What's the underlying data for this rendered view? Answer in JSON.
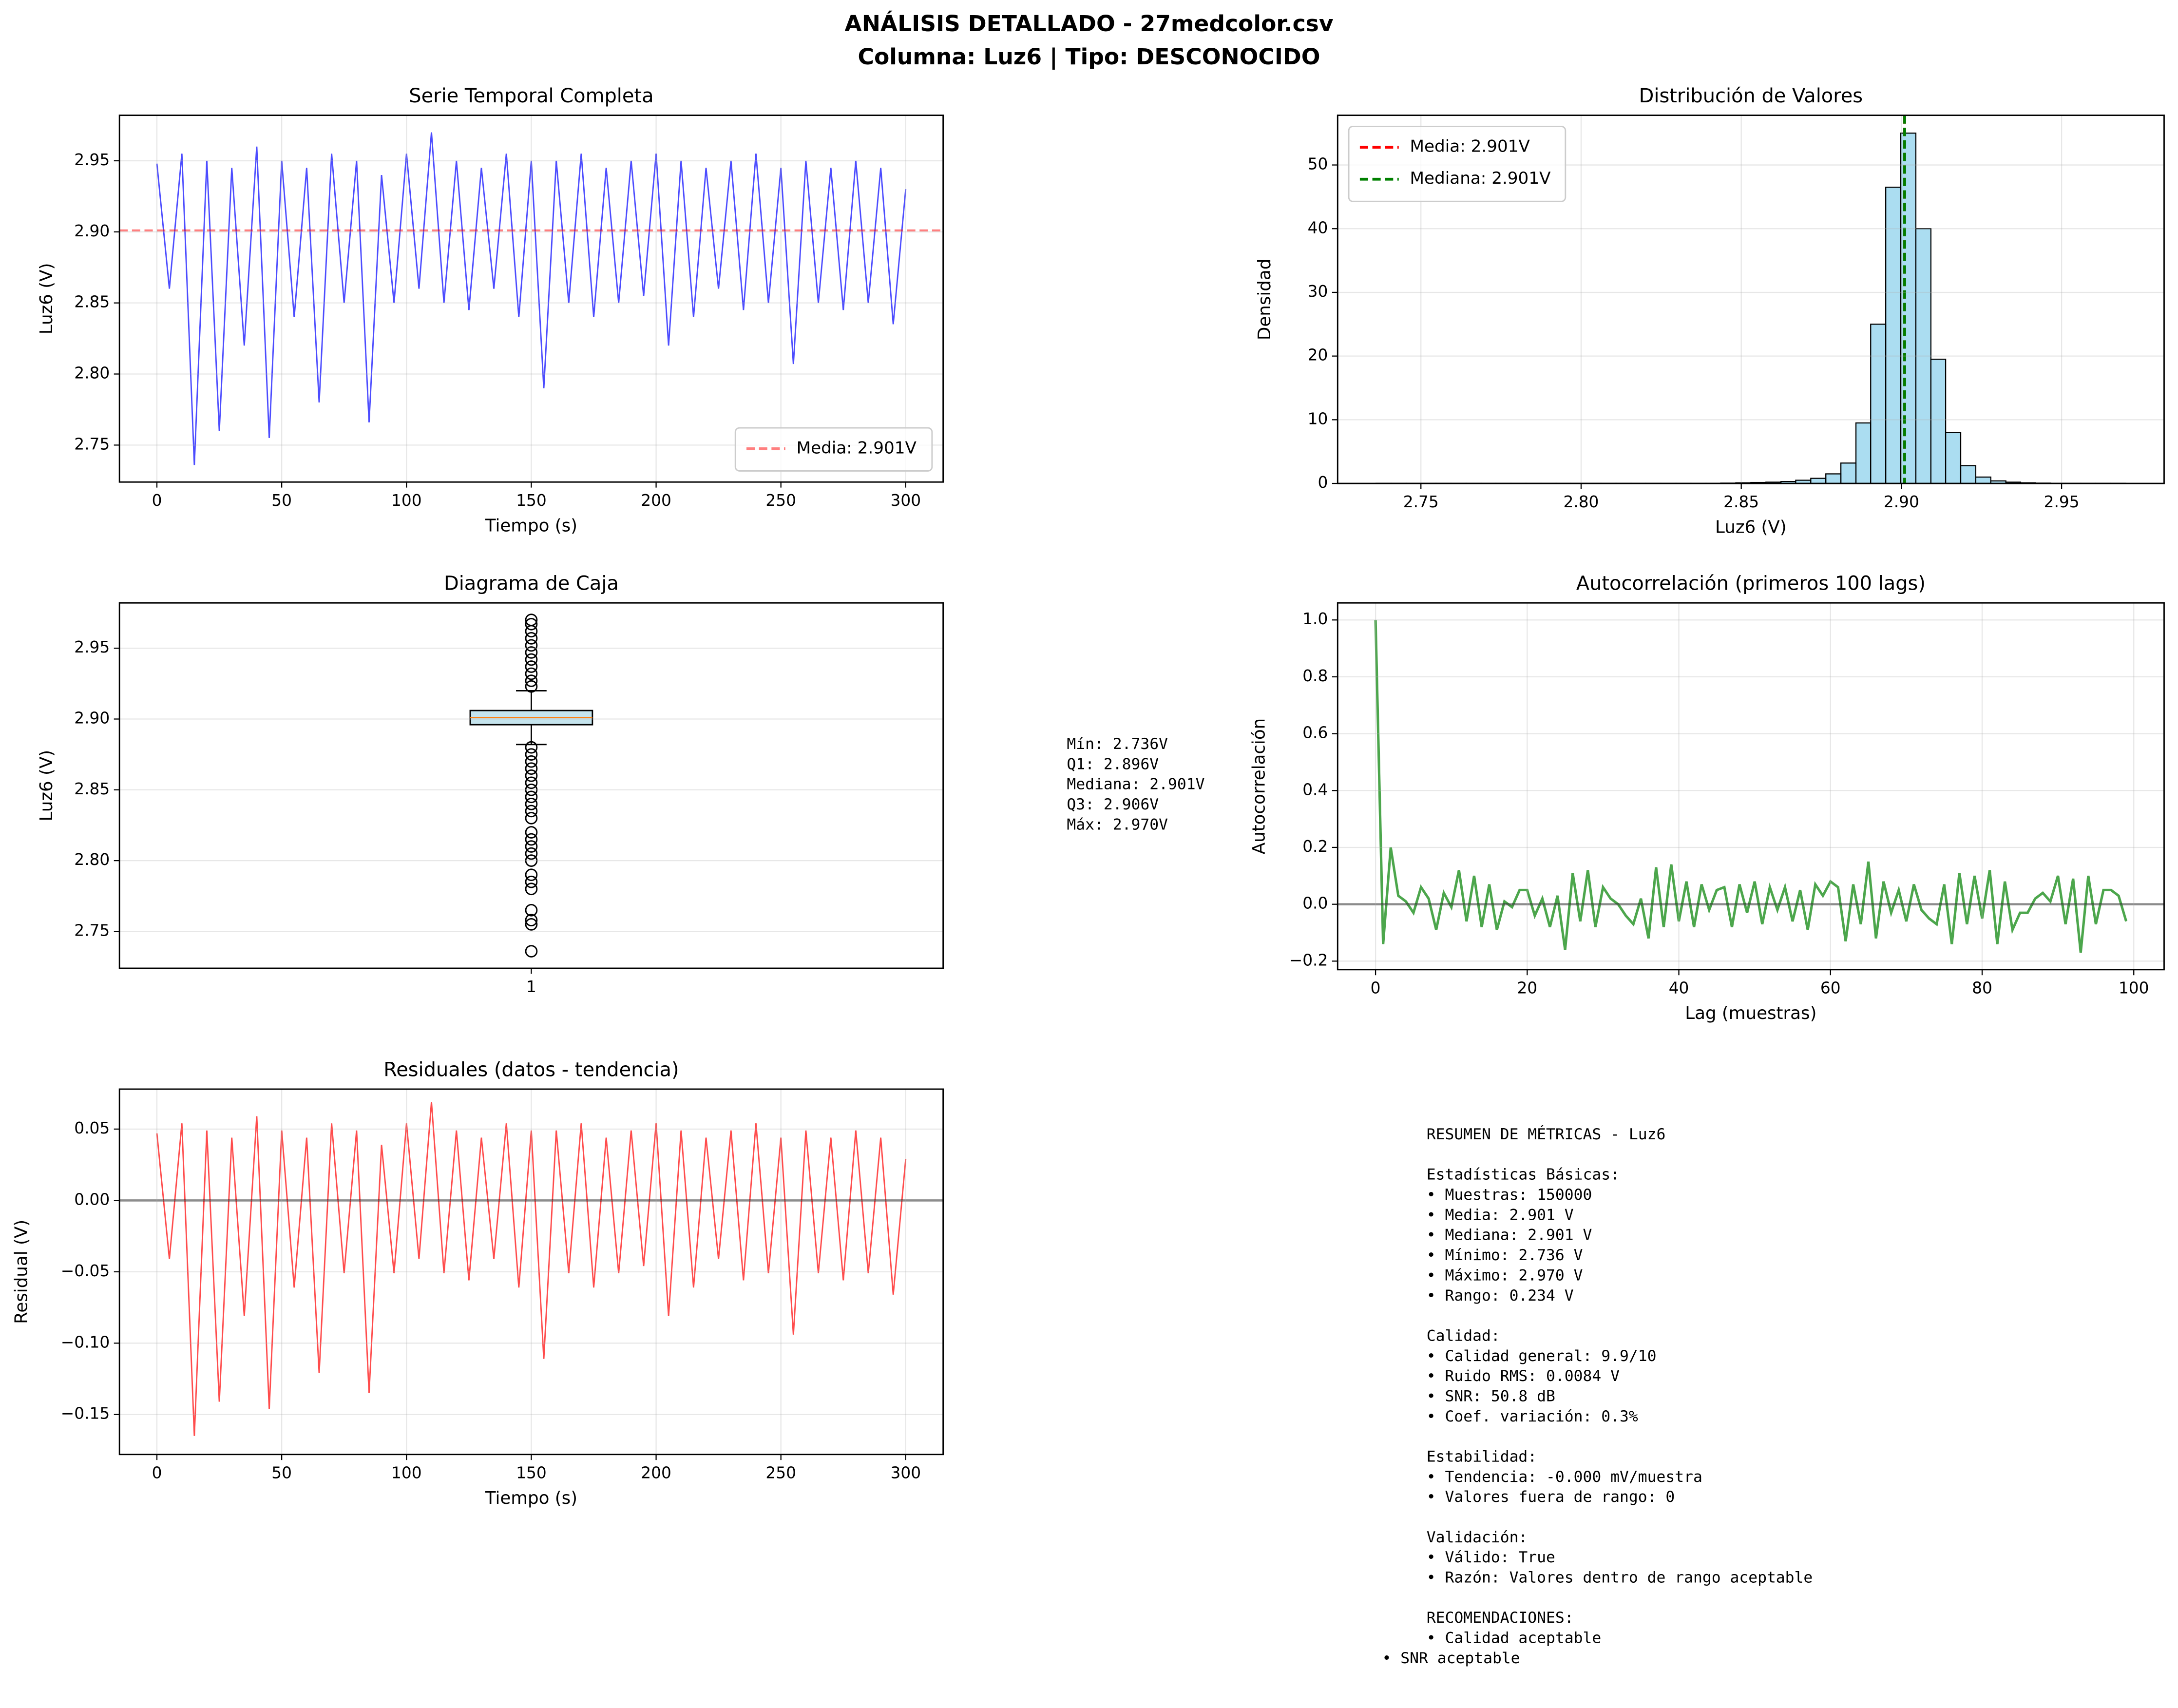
{
  "suptitle": [
    "ANÁLISIS DETALLADO - 27medcolor.csv",
    "Columna: Luz6 | Tipo: DESCONOCIDO"
  ],
  "chart_data": [
    {
      "type": "line",
      "title": "Serie Temporal Completa",
      "xlabel": "Tiempo (s)",
      "ylabel": "Luz6 (V)",
      "grid": true,
      "legend": "lower right",
      "xlim": [
        -15,
        315
      ],
      "xticks": [
        0,
        50,
        100,
        150,
        200,
        250,
        300
      ],
      "ylim": [
        2.724,
        2.982
      ],
      "yticks": [
        2.75,
        {
          "value": 2.8,
          "label": "2.80"
        },
        2.85,
        {
          "value": 2.9,
          "label": "2.90"
        },
        2.95
      ],
      "x": [
        0,
        5,
        10,
        15,
        20,
        25,
        30,
        35,
        40,
        45,
        50,
        55,
        60,
        65,
        70,
        75,
        80,
        85,
        90,
        95,
        100,
        105,
        110,
        115,
        120,
        125,
        130,
        135,
        140,
        145,
        150,
        155,
        160,
        165,
        170,
        175,
        180,
        185,
        190,
        195,
        200,
        205,
        210,
        215,
        220,
        225,
        230,
        235,
        240,
        245,
        250,
        255,
        260,
        265,
        270,
        275,
        280,
        285,
        290,
        295,
        300
      ],
      "series": [
        {
          "color": "#0000ff",
          "alpha": 0.7,
          "values": [
            2.948,
            2.86,
            2.955,
            2.736,
            2.95,
            2.76,
            2.945,
            2.82,
            2.96,
            2.755,
            2.95,
            2.84,
            2.945,
            2.78,
            2.955,
            2.85,
            2.95,
            2.766,
            2.94,
            2.85,
            2.955,
            2.86,
            2.97,
            2.85,
            2.95,
            2.845,
            2.945,
            2.86,
            2.955,
            2.84,
            2.95,
            2.79,
            2.95,
            2.85,
            2.955,
            2.84,
            2.945,
            2.85,
            2.95,
            2.855,
            2.955,
            2.82,
            2.95,
            2.84,
            2.945,
            2.86,
            2.95,
            2.845,
            2.955,
            2.85,
            2.945,
            2.807,
            2.95,
            2.85,
            2.945,
            2.845,
            2.95,
            2.85,
            2.945,
            2.835,
            2.93
          ]
        }
      ],
      "hlines": [
        {
          "name": "Media: 2.901V",
          "value": 2.901,
          "color": "#ff0000",
          "alpha": 0.5,
          "dashed": true
        }
      ]
    },
    {
      "type": "histogram",
      "title": "Distribución de Valores",
      "xlabel": "Luz6 (V)",
      "ylabel": "Densidad",
      "grid": true,
      "legend": "upper left",
      "color": "#87ceeb",
      "xlim": [
        2.724,
        2.982
      ],
      "xticks": [
        2.75,
        {
          "value": 2.8,
          "label": "2.80"
        },
        2.85,
        {
          "value": 2.9,
          "label": "2.90"
        },
        2.95
      ],
      "ylim": [
        0,
        57.8
      ],
      "yticks": [
        0,
        10,
        20,
        30,
        40,
        50
      ],
      "bins": [
        2.736,
        2.7407,
        2.7454,
        2.75,
        2.7547,
        2.7594,
        2.7641,
        2.7688,
        2.7734,
        2.7781,
        2.7828,
        2.7875,
        2.7922,
        2.7968,
        2.8015,
        2.8062,
        2.8109,
        2.8156,
        2.8202,
        2.8249,
        2.8296,
        2.8343,
        2.839,
        2.8436,
        2.8483,
        2.853,
        2.8577,
        2.8624,
        2.867,
        2.8717,
        2.8764,
        2.8811,
        2.8858,
        2.8904,
        2.8951,
        2.8998,
        2.9045,
        2.9092,
        2.9138,
        2.9185,
        2.9232,
        2.9279,
        2.9326,
        2.9372,
        2.9419,
        2.9466,
        2.9513,
        2.956,
        2.9606,
        2.9653,
        2.97
      ],
      "values": [
        0.02,
        0.02,
        0.02,
        0.02,
        0.02,
        0.02,
        0.02,
        0.02,
        0.02,
        0.02,
        0.02,
        0.02,
        0.02,
        0.02,
        0.02,
        0.02,
        0.02,
        0.02,
        0.02,
        0.02,
        0.02,
        0.02,
        0.02,
        0.05,
        0.1,
        0.15,
        0.2,
        0.3,
        0.5,
        0.8,
        1.5,
        3.2,
        9.5,
        25,
        46.5,
        55,
        40,
        19.5,
        8,
        2.8,
        1.0,
        0.4,
        0.2,
        0.1,
        0.05,
        0.02,
        0.02,
        0.02,
        0.02,
        0.02
      ],
      "vlines": [
        {
          "name": "Media: 2.901V",
          "value": 2.901,
          "color": "#ff0000",
          "dashed": true
        },
        {
          "name": "Mediana: 2.901V",
          "value": 2.901,
          "color": "#008000",
          "dashed": true
        }
      ]
    },
    {
      "type": "box",
      "title": "Diagrama de Caja",
      "ylabel": "Luz6 (V)",
      "grid": true,
      "categories": [
        "1"
      ],
      "color": "#add8e6",
      "ylim": [
        2.724,
        2.982
      ],
      "yticks": [
        2.75,
        {
          "value": 2.8,
          "label": "2.80"
        },
        2.85,
        {
          "value": 2.9,
          "label": "2.90"
        },
        2.95
      ],
      "boxes": [
        {
          "whislo": 2.882,
          "q1": 2.896,
          "med": 2.901,
          "q3": 2.906,
          "whishi": 2.92,
          "fliers": [
            2.736,
            2.755,
            2.758,
            2.765,
            2.78,
            2.785,
            2.79,
            2.8,
            2.805,
            2.81,
            2.815,
            2.82,
            2.83,
            2.835,
            2.84,
            2.845,
            2.85,
            2.855,
            2.86,
            2.865,
            2.87,
            2.875,
            2.88,
            2.923,
            2.927,
            2.932,
            2.937,
            2.942,
            2.947,
            2.952,
            2.957,
            2.962,
            2.967,
            2.97
          ]
        }
      ],
      "annotation": [
        "Mín: 2.736V",
        "Q1: 2.896V",
        "Mediana: 2.901V",
        "Q3: 2.906V",
        "Máx: 2.970V"
      ]
    },
    {
      "type": "line",
      "title": "Autocorrelación (primeros 100 lags)",
      "xlabel": "Lag (muestras)",
      "ylabel": "Autocorrelación",
      "grid": true,
      "xlim": [
        -5,
        104
      ],
      "xticks": [
        0,
        20,
        40,
        60,
        80,
        100
      ],
      "ylim": [
        -0.23,
        1.06
      ],
      "yticks": [
        {
          "value": -0.2,
          "label": "−0.2"
        },
        {
          "value": 0,
          "label": "0.0"
        },
        0.2,
        0.4,
        0.6,
        0.8,
        {
          "value": 1,
          "label": "1.0"
        }
      ],
      "x": [
        0,
        1,
        2,
        3,
        4,
        5,
        6,
        7,
        8,
        9,
        10,
        11,
        12,
        13,
        14,
        15,
        16,
        17,
        18,
        19,
        20,
        21,
        22,
        23,
        24,
        25,
        26,
        27,
        28,
        29,
        30,
        31,
        32,
        33,
        34,
        35,
        36,
        37,
        38,
        39,
        40,
        41,
        42,
        43,
        44,
        45,
        46,
        47,
        48,
        49,
        50,
        51,
        52,
        53,
        54,
        55,
        56,
        57,
        58,
        59,
        60,
        61,
        62,
        63,
        64,
        65,
        66,
        67,
        68,
        69,
        70,
        71,
        72,
        73,
        74,
        75,
        76,
        77,
        78,
        79,
        80,
        81,
        82,
        83,
        84,
        85,
        86,
        87,
        88,
        89,
        90,
        91,
        92,
        93,
        94,
        95,
        96,
        97,
        98,
        99
      ],
      "series": [
        {
          "color": "#008000",
          "alpha": 0.7,
          "values": [
            1.0,
            -0.14,
            0.2,
            0.03,
            0.01,
            -0.03,
            0.06,
            0.02,
            -0.09,
            0.04,
            -0.01,
            0.12,
            -0.06,
            0.1,
            -0.08,
            0.07,
            -0.09,
            0.01,
            -0.01,
            0.05,
            0.05,
            -0.04,
            0.02,
            -0.08,
            0.03,
            -0.16,
            0.11,
            -0.06,
            0.12,
            -0.08,
            0.06,
            0.02,
            0.0,
            -0.04,
            -0.07,
            0.02,
            -0.12,
            0.13,
            -0.08,
            0.14,
            -0.06,
            0.08,
            -0.08,
            0.07,
            -0.02,
            0.05,
            0.06,
            -0.08,
            0.07,
            -0.03,
            0.08,
            -0.07,
            0.06,
            -0.02,
            0.06,
            -0.06,
            0.05,
            -0.09,
            0.07,
            0.03,
            0.08,
            0.06,
            -0.13,
            0.07,
            -0.07,
            0.15,
            -0.12,
            0.08,
            -0.03,
            0.05,
            -0.06,
            0.07,
            -0.02,
            -0.05,
            -0.07,
            0.07,
            -0.14,
            0.11,
            -0.07,
            0.1,
            -0.05,
            0.12,
            -0.14,
            0.08,
            -0.09,
            -0.03,
            -0.03,
            0.02,
            0.04,
            0.01,
            0.1,
            -0.07,
            0.09,
            -0.17,
            0.1,
            -0.07,
            0.05,
            0.05,
            0.03,
            -0.06
          ]
        }
      ],
      "hlines": [
        {
          "value": 0,
          "color": "#000000",
          "alpha": 0.5
        }
      ]
    },
    {
      "type": "line",
      "title": "Residuales (datos - tendencia)",
      "xlabel": "Tiempo (s)",
      "ylabel": "Residual (V)",
      "grid": true,
      "xlim": [
        -15,
        315
      ],
      "xticks": [
        0,
        50,
        100,
        150,
        200,
        250,
        300
      ],
      "ylim": [
        -0.178,
        0.078
      ],
      "yticks": [
        {
          "value": -0.15,
          "label": "−0.15"
        },
        {
          "value": -0.1,
          "label": "−0.10"
        },
        {
          "value": -0.05,
          "label": "−0.05"
        },
        {
          "value": 0,
          "label": "0.00"
        },
        0.05
      ],
      "x": [
        0,
        5,
        10,
        15,
        20,
        25,
        30,
        35,
        40,
        45,
        50,
        55,
        60,
        65,
        70,
        75,
        80,
        85,
        90,
        95,
        100,
        105,
        110,
        115,
        120,
        125,
        130,
        135,
        140,
        145,
        150,
        155,
        160,
        165,
        170,
        175,
        180,
        185,
        190,
        195,
        200,
        205,
        210,
        215,
        220,
        225,
        230,
        235,
        240,
        245,
        250,
        255,
        260,
        265,
        270,
        275,
        280,
        285,
        290,
        295,
        300
      ],
      "series": [
        {
          "color": "#ff0000",
          "alpha": 0.7,
          "values": [
            0.047,
            -0.041,
            0.054,
            -0.165,
            0.049,
            -0.141,
            0.044,
            -0.081,
            0.059,
            -0.146,
            0.049,
            -0.061,
            0.044,
            -0.121,
            0.054,
            -0.051,
            0.049,
            -0.135,
            0.039,
            -0.051,
            0.054,
            -0.041,
            0.069,
            -0.051,
            0.049,
            -0.056,
            0.044,
            -0.041,
            0.054,
            -0.061,
            0.049,
            -0.111,
            0.049,
            -0.051,
            0.054,
            -0.061,
            0.044,
            -0.051,
            0.049,
            -0.046,
            0.054,
            -0.081,
            0.049,
            -0.061,
            0.044,
            -0.041,
            0.049,
            -0.056,
            0.054,
            -0.051,
            0.044,
            -0.094,
            0.049,
            -0.051,
            0.044,
            -0.056,
            0.049,
            -0.051,
            0.044,
            -0.066,
            0.029
          ]
        }
      ],
      "hlines": [
        {
          "value": 0,
          "color": "#000000",
          "alpha": 0.5
        }
      ]
    }
  ],
  "summary": {
    "title": "RESUMEN DE MÉTRICAS - Luz6",
    "sections": [
      {
        "heading": "Estadísticas Básicas:",
        "lines": [
          "• Muestras: 150000",
          "• Media: 2.901 V",
          "• Mediana: 2.901 V",
          "• Mínimo: 2.736 V",
          "• Máximo: 2.970 V",
          "• Rango: 0.234 V"
        ]
      },
      {
        "heading": "Calidad:",
        "lines": [
          "• Calidad general: 9.9/10",
          "• Ruido RMS: 0.0084 V",
          "• SNR: 50.8 dB",
          "• Coef. variación: 0.3%"
        ]
      },
      {
        "heading": "Estabilidad:",
        "lines": [
          "• Tendencia: -0.000 mV/muestra",
          "• Valores fuera de rango: 0"
        ]
      },
      {
        "heading": "Validación:",
        "lines": [
          "• Válido: True",
          "• Razón: Valores dentro de rango aceptable"
        ]
      },
      {
        "heading": "RECOMENDACIONES:",
        "lines": [
          "• Calidad aceptable"
        ]
      }
    ],
    "footer": "• SNR aceptable"
  }
}
